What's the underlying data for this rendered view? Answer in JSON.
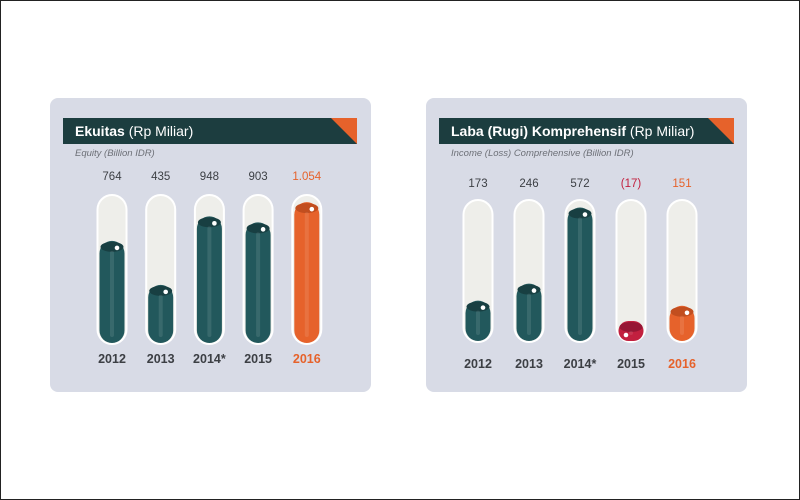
{
  "chart_data": [
    {
      "type": "bar",
      "title": "Ekuitas",
      "title_unit": "(Rp Miliar)",
      "subtitle": "Equity (Billion IDR)",
      "categories": [
        "2012",
        "2013",
        "2014*",
        "2015",
        "2016"
      ],
      "values": [
        764,
        435,
        948,
        903,
        1054
      ],
      "value_labels": [
        "764",
        "435",
        "948",
        "903",
        "1.054"
      ],
      "highlight_index": 4,
      "ylim": [
        0,
        1100
      ]
    },
    {
      "type": "bar",
      "title": "Laba (Rugi) Komprehensif",
      "title_unit": "(Rp Miliar)",
      "subtitle": "Income (Loss) Comprehensive (Billion IDR)",
      "categories": [
        "2012",
        "2013",
        "2014*",
        "2015",
        "2016"
      ],
      "values": [
        173,
        246,
        572,
        -17,
        151
      ],
      "value_labels": [
        "173",
        "246",
        "572",
        "(17)",
        "151"
      ],
      "highlight_index": 4,
      "ylim": [
        0,
        600
      ]
    }
  ],
  "colors": {
    "bar": "#22585c",
    "bar_dark": "#183f42",
    "highlight": "#e6622b",
    "highlight_dark": "#c24e1f",
    "negative": "#c2203f",
    "negative_dark": "#961634",
    "track": "#eeeeea",
    "track_border": "#ffffff",
    "banner": "#1c3d3f"
  }
}
